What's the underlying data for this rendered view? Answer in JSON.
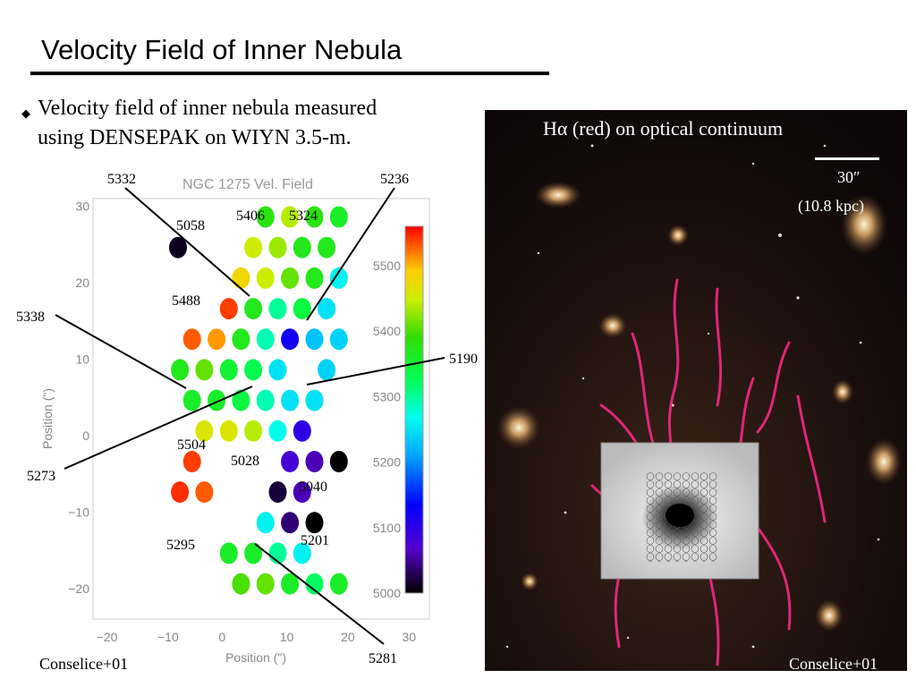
{
  "slide": {
    "title": "Velocity Field of Inner Nebula",
    "bullet": {
      "line1": "Velocity field of inner nebula measured",
      "line2": "using DENSEPAK on WIYN 3.5-m."
    },
    "credit_left": "Conselice+01",
    "credit_right": "Conselice+01"
  },
  "image": {
    "caption": "Hα (red) on optical continuum",
    "scale_arcsec": "30″",
    "scale_kpc": "(10.8 kpc)"
  },
  "chart_data": {
    "type": "scatter",
    "title": "NGC 1275 Vel. Field",
    "xlabel": "Position (\")",
    "ylabel": "Position (\")",
    "xlim": [
      -22,
      33
    ],
    "ylim": [
      -24,
      31
    ],
    "x_ticks": [
      "−20",
      "−10",
      "0",
      "10",
      "20",
      "30"
    ],
    "y_ticks": [
      "30",
      "20",
      "10",
      "0",
      "−10",
      "−20"
    ],
    "colorbar": {
      "min": 5000,
      "max": 5560,
      "ticks": [
        "5500",
        "5400",
        "5300",
        "5200",
        "5100",
        "5000"
      ]
    },
    "points": [
      {
        "x": 6.2,
        "y": 28.6,
        "v": 5380
      },
      {
        "x": 10.2,
        "y": 28.6,
        "v": 5440
      },
      {
        "x": 14.2,
        "y": 28.6,
        "v": 5380
      },
      {
        "x": 18.2,
        "y": 28.6,
        "v": 5360
      },
      {
        "x": -8.1,
        "y": 24.6,
        "v": 5010
      },
      {
        "x": 4.2,
        "y": 24.6,
        "v": 5450
      },
      {
        "x": 8.2,
        "y": 24.6,
        "v": 5430
      },
      {
        "x": 12.2,
        "y": 24.6,
        "v": 5370
      },
      {
        "x": 16.2,
        "y": 24.6,
        "v": 5370
      },
      {
        "x": 2.2,
        "y": 20.6,
        "v": 5480
      },
      {
        "x": 6.2,
        "y": 20.6,
        "v": 5450
      },
      {
        "x": 10.2,
        "y": 20.6,
        "v": 5410
      },
      {
        "x": 14.2,
        "y": 20.6,
        "v": 5370
      },
      {
        "x": 18.2,
        "y": 20.6,
        "v": 5260
      },
      {
        "x": 0.2,
        "y": 16.6,
        "v": 5540
      },
      {
        "x": 4.2,
        "y": 16.6,
        "v": 5370
      },
      {
        "x": 8.2,
        "y": 16.6,
        "v": 5300
      },
      {
        "x": 12.2,
        "y": 16.6,
        "v": 5340
      },
      {
        "x": 16.2,
        "y": 16.6,
        "v": 5250
      },
      {
        "x": -5.8,
        "y": 12.6,
        "v": 5530
      },
      {
        "x": -1.8,
        "y": 12.6,
        "v": 5510
      },
      {
        "x": 2.2,
        "y": 12.6,
        "v": 5370
      },
      {
        "x": 6.2,
        "y": 12.6,
        "v": 5290
      },
      {
        "x": 10.2,
        "y": 12.6,
        "v": 5120
      },
      {
        "x": 14.2,
        "y": 12.6,
        "v": 5230
      },
      {
        "x": 18.2,
        "y": 12.6,
        "v": 5240
      },
      {
        "x": -7.8,
        "y": 8.6,
        "v": 5370
      },
      {
        "x": -3.8,
        "y": 8.6,
        "v": 5410
      },
      {
        "x": 0.2,
        "y": 8.6,
        "v": 5350
      },
      {
        "x": 4.2,
        "y": 8.6,
        "v": 5330
      },
      {
        "x": 8.2,
        "y": 8.6,
        "v": 5250
      },
      {
        "x": 16.2,
        "y": 8.6,
        "v": 5240
      },
      {
        "x": -5.8,
        "y": 4.6,
        "v": 5360
      },
      {
        "x": -1.8,
        "y": 4.6,
        "v": 5360
      },
      {
        "x": 2.2,
        "y": 4.6,
        "v": 5340
      },
      {
        "x": 6.2,
        "y": 4.6,
        "v": 5290
      },
      {
        "x": 10.2,
        "y": 4.6,
        "v": 5250
      },
      {
        "x": 14.2,
        "y": 4.6,
        "v": 5250
      },
      {
        "x": -3.8,
        "y": 0.6,
        "v": 5460
      },
      {
        "x": 0.2,
        "y": 0.6,
        "v": 5460
      },
      {
        "x": 4.2,
        "y": 0.6,
        "v": 5440
      },
      {
        "x": 8.2,
        "y": 0.6,
        "v": 5270
      },
      {
        "x": 12.2,
        "y": 0.6,
        "v": 5100
      },
      {
        "x": -5.8,
        "y": -3.4,
        "v": 5540
      },
      {
        "x": 10.2,
        "y": -3.4,
        "v": 5080
      },
      {
        "x": 14.2,
        "y": -3.4,
        "v": 5060
      },
      {
        "x": 18.2,
        "y": -3.4,
        "v": 5000
      },
      {
        "x": -7.8,
        "y": -7.4,
        "v": 5545
      },
      {
        "x": -3.8,
        "y": -7.4,
        "v": 5530
      },
      {
        "x": 8.2,
        "y": -7.4,
        "v": 5020
      },
      {
        "x": 12.2,
        "y": -7.4,
        "v": 5060
      },
      {
        "x": 6.2,
        "y": -11.4,
        "v": 5260
      },
      {
        "x": 10.2,
        "y": -11.4,
        "v": 5040
      },
      {
        "x": 14.2,
        "y": -11.4,
        "v": 5000
      },
      {
        "x": 0.2,
        "y": -15.4,
        "v": 5360
      },
      {
        "x": 4.2,
        "y": -15.4,
        "v": 5360
      },
      {
        "x": 8.2,
        "y": -15.4,
        "v": 5300
      },
      {
        "x": 12.2,
        "y": -15.4,
        "v": 5260
      },
      {
        "x": 2.2,
        "y": -19.4,
        "v": 5400
      },
      {
        "x": 6.2,
        "y": -19.4,
        "v": 5410
      },
      {
        "x": 10.2,
        "y": -19.4,
        "v": 5360
      },
      {
        "x": 14.2,
        "y": -19.4,
        "v": 5320
      },
      {
        "x": 18.2,
        "y": -19.4,
        "v": 5360
      }
    ],
    "annotations": {
      "a5332": "5332",
      "a5236": "5236",
      "a5058": "5058",
      "a5406": "5406",
      "a5324": "5324",
      "a5488": "5488",
      "a5338": "5338",
      "a5190": "5190",
      "a5504": "5504",
      "a5273": "5273",
      "a5028": "5028",
      "a5040": "5040",
      "a5295": "5295",
      "a5201": "5201",
      "a5281": "5281"
    }
  }
}
